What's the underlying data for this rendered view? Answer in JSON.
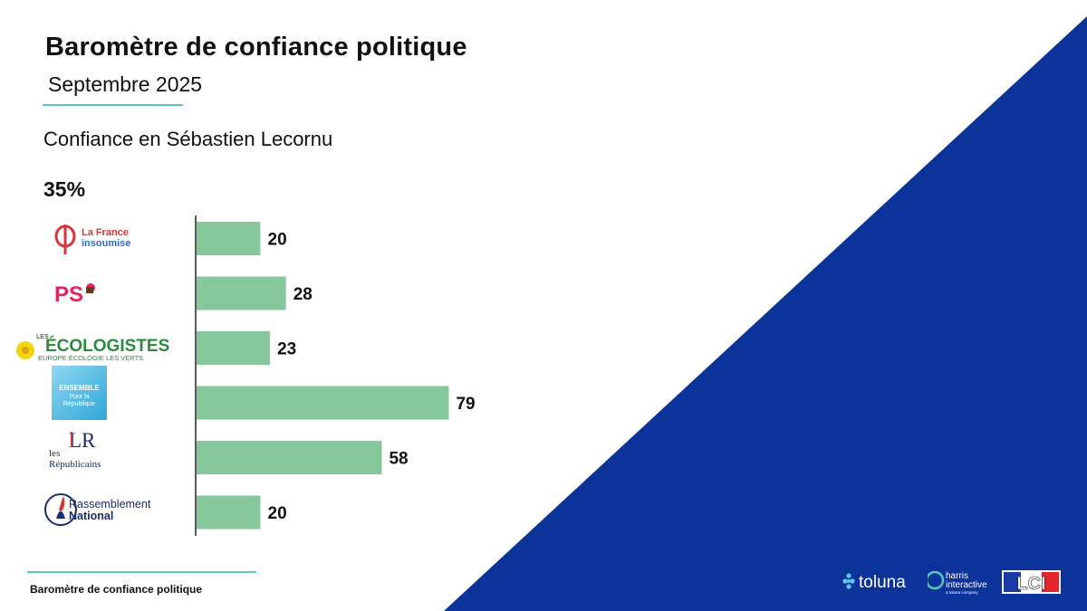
{
  "header": {
    "title": "Baromètre de confiance politique",
    "subtitle": "Septembre 2025"
  },
  "question": "Confiance en Sébastien Lecornu",
  "overall": "35%",
  "logos": {
    "lfi": {
      "line1": "La France",
      "line2": "insoumise"
    },
    "ps": {
      "text": "PS"
    },
    "eco": {
      "line1": "LES",
      "line2": "ÉCOLOGISTES",
      "line3": "EUROPE ÉCOLOGIE LES VERTS"
    },
    "ensemble": {
      "line1": "ENSEMBLE",
      "line2": "Pour la",
      "line3": "République"
    },
    "lr": {
      "mark": "LR",
      "line1": "les",
      "line2": "Républicains"
    },
    "rn": {
      "line1": "Rassemblement",
      "line2": "National"
    }
  },
  "footer": {
    "text": "Baromètre de confiance politique"
  },
  "brands": {
    "toluna": "toluna",
    "harris_line1": "harris",
    "harris_line2": "interactive",
    "harris_line3": "a toluna company",
    "lci": "LCI"
  },
  "colors": {
    "bar": "#86c79b",
    "triangle": "#0c3399",
    "accent": "#5bc8c0"
  },
  "chart_data": {
    "type": "bar",
    "orientation": "horizontal",
    "categories": [
      "La France insoumise",
      "PS",
      "Les Écologistes",
      "Ensemble pour la République",
      "Les Républicains",
      "Rassemblement National"
    ],
    "values": [
      20,
      28,
      23,
      79,
      58,
      20
    ],
    "title": "Confiance en Sébastien Lecornu",
    "xlim": [
      0,
      100
    ],
    "grid": false
  }
}
